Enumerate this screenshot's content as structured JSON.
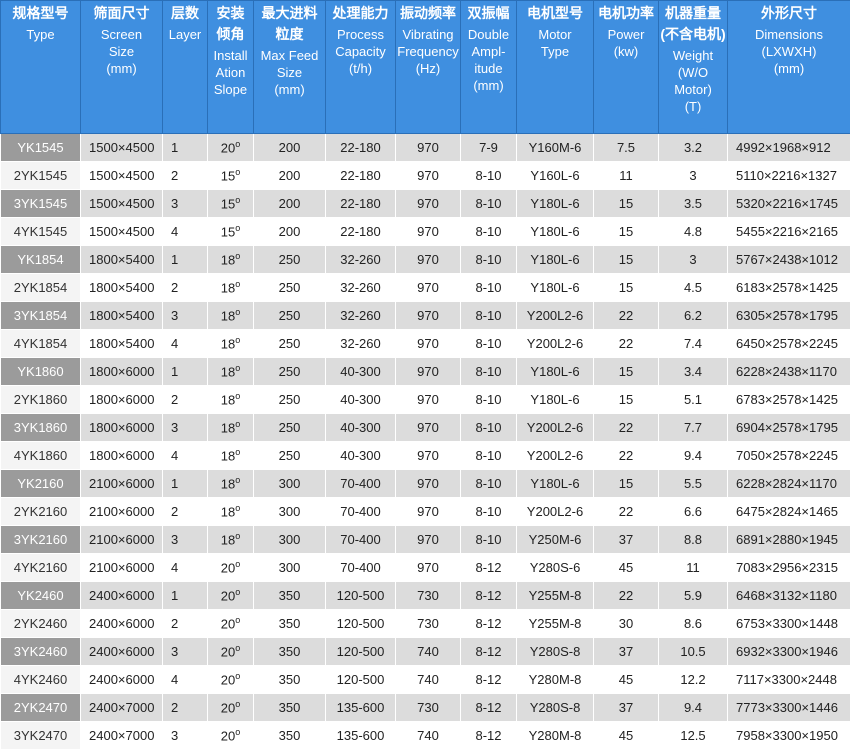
{
  "header": {
    "columns": [
      {
        "zh": [
          "规格型号"
        ],
        "en": [
          "Type"
        ]
      },
      {
        "zh": [
          "筛面尺寸"
        ],
        "en": [
          "Screen",
          "Size",
          "(mm)"
        ]
      },
      {
        "zh": [
          "层数"
        ],
        "en": [
          "Layer"
        ]
      },
      {
        "zh": [
          "安装",
          "倾角"
        ],
        "en": [
          "Install",
          "Ation",
          "Slope"
        ]
      },
      {
        "zh": [
          "最大进料",
          "粒度"
        ],
        "en": [
          "Max Feed",
          "Size",
          "(mm)"
        ]
      },
      {
        "zh": [
          "处理能力"
        ],
        "en": [
          "Process",
          "Capacity",
          "(t/h)"
        ]
      },
      {
        "zh": [
          "振动频率"
        ],
        "en": [
          "Vibrating",
          "Frequency",
          "(Hz)"
        ]
      },
      {
        "zh": [
          "双振幅"
        ],
        "en": [
          "Double",
          "Ampl-",
          "itude",
          "(mm)"
        ]
      },
      {
        "zh": [
          "电机型号"
        ],
        "en": [
          "Motor",
          "Type"
        ]
      },
      {
        "zh": [
          "电机功率"
        ],
        "en": [
          "Power",
          "(kw)"
        ]
      },
      {
        "zh": [
          "机器重量",
          "(不含电机)"
        ],
        "en": [
          "Weight",
          "(W/O Motor)",
          "(T)"
        ]
      },
      {
        "zh": [
          "外形尺寸"
        ],
        "en": [
          "Dimensions",
          "(LXWXH)",
          "(mm)"
        ]
      }
    ]
  },
  "table": {
    "rows": [
      [
        "YK1545",
        "1500×4500",
        "1",
        {
          "value": "20",
          "sup": "o"
        },
        "200",
        "22-180",
        "970",
        "7-9",
        "Y160M-6",
        "7.5",
        "3.2",
        "4992×1968×912"
      ],
      [
        "2YK1545",
        "1500×4500",
        "2",
        {
          "value": "15",
          "sup": "o"
        },
        "200",
        "22-180",
        "970",
        "8-10",
        "Y160L-6",
        "11",
        "3",
        "5110×2216×1327"
      ],
      [
        "3YK1545",
        "1500×4500",
        "3",
        {
          "value": "15",
          "sup": "o"
        },
        "200",
        "22-180",
        "970",
        "8-10",
        "Y180L-6",
        "15",
        "3.5",
        "5320×2216×1745"
      ],
      [
        "4YK1545",
        "1500×4500",
        "4",
        {
          "value": "15",
          "sup": "o"
        },
        "200",
        "22-180",
        "970",
        "8-10",
        "Y180L-6",
        "15",
        "4.8",
        "5455×2216×2165"
      ],
      [
        "YK1854",
        "1800×5400",
        "1",
        {
          "value": "18",
          "sup": "o"
        },
        "250",
        "32-260",
        "970",
        "8-10",
        "Y180L-6",
        "15",
        "3",
        "5767×2438×1012"
      ],
      [
        "2YK1854",
        "1800×5400",
        "2",
        {
          "value": "18",
          "sup": "o"
        },
        "250",
        "32-260",
        "970",
        "8-10",
        "Y180L-6",
        "15",
        "4.5",
        "6183×2578×1425"
      ],
      [
        "3YK1854",
        "1800×5400",
        "3",
        {
          "value": "18",
          "sup": "o"
        },
        "250",
        "32-260",
        "970",
        "8-10",
        "Y200L2-6",
        "22",
        "6.2",
        "6305×2578×1795"
      ],
      [
        "4YK1854",
        "1800×5400",
        "4",
        {
          "value": "18",
          "sup": "o"
        },
        "250",
        "32-260",
        "970",
        "8-10",
        "Y200L2-6",
        "22",
        "7.4",
        "6450×2578×2245"
      ],
      [
        "YK1860",
        "1800×6000",
        "1",
        {
          "value": "18",
          "sup": "o"
        },
        "250",
        "40-300",
        "970",
        "8-10",
        "Y180L-6",
        "15",
        "3.4",
        "6228×2438×1170"
      ],
      [
        "2YK1860",
        "1800×6000",
        "2",
        {
          "value": "18",
          "sup": "o"
        },
        "250",
        "40-300",
        "970",
        "8-10",
        "Y180L-6",
        "15",
        "5.1",
        "6783×2578×1425"
      ],
      [
        "3YK1860",
        "1800×6000",
        "3",
        {
          "value": "18",
          "sup": "o"
        },
        "250",
        "40-300",
        "970",
        "8-10",
        "Y200L2-6",
        "22",
        "7.7",
        "6904×2578×1795"
      ],
      [
        "4YK1860",
        "1800×6000",
        "4",
        {
          "value": "18",
          "sup": "o"
        },
        "250",
        "40-300",
        "970",
        "8-10",
        "Y200L2-6",
        "22",
        "9.4",
        "7050×2578×2245"
      ],
      [
        "YK2160",
        "2100×6000",
        "1",
        {
          "value": "18",
          "sup": "o"
        },
        "300",
        "70-400",
        "970",
        "8-10",
        "Y180L-6",
        "15",
        "5.5",
        "6228×2824×1170"
      ],
      [
        "2YK2160",
        "2100×6000",
        "2",
        {
          "value": "18",
          "sup": "o"
        },
        "300",
        "70-400",
        "970",
        "8-10",
        "Y200L2-6",
        "22",
        "6.6",
        "6475×2824×1465"
      ],
      [
        "3YK2160",
        "2100×6000",
        "3",
        {
          "value": "18",
          "sup": "o"
        },
        "300",
        "70-400",
        "970",
        "8-10",
        "Y250M-6",
        "37",
        "8.8",
        "6891×2880×1945"
      ],
      [
        "4YK2160",
        "2100×6000",
        "4",
        {
          "value": "20",
          "sup": "o"
        },
        "300",
        "70-400",
        "970",
        "8-12",
        "Y280S-6",
        "45",
        "11",
        "7083×2956×2315"
      ],
      [
        "YK2460",
        "2400×6000",
        "1",
        {
          "value": "20",
          "sup": "o"
        },
        "350",
        "120-500",
        "730",
        "8-12",
        "Y255M-8",
        "22",
        "5.9",
        "6468×3132×1180"
      ],
      [
        "2YK2460",
        "2400×6000",
        "2",
        {
          "value": "20",
          "sup": "o"
        },
        "350",
        "120-500",
        "730",
        "8-12",
        "Y255M-8",
        "30",
        "8.6",
        "6753×3300×1448"
      ],
      [
        "3YK2460",
        "2400×6000",
        "3",
        {
          "value": "20",
          "sup": "o"
        },
        "350",
        "120-500",
        "740",
        "8-12",
        "Y280S-8",
        "37",
        "10.5",
        "6932×3300×1946"
      ],
      [
        "4YK2460",
        "2400×6000",
        "4",
        {
          "value": "20",
          "sup": "o"
        },
        "350",
        "120-500",
        "740",
        "8-12",
        "Y280M-8",
        "45",
        "12.2",
        "7117×3300×2448"
      ],
      [
        "2YK2470",
        "2400×7000",
        "2",
        {
          "value": "20",
          "sup": "o"
        },
        "350",
        "135-600",
        "730",
        "8-12",
        "Y280S-8",
        "37",
        "9.4",
        "7773×3300×1446"
      ],
      [
        "3YK2470",
        "2400×7000",
        "3",
        {
          "value": "20",
          "sup": "o"
        },
        "350",
        "135-600",
        "740",
        "8-12",
        "Y280M-8",
        "45",
        "12.5",
        "7958×3300×1950"
      ]
    ]
  }
}
